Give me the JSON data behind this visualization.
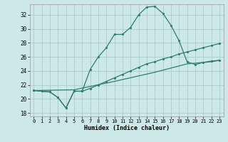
{
  "xlabel": "Humidex (Indice chaleur)",
  "bg_color": "#cce8e8",
  "grid_color": "#aacccc",
  "line_color": "#2e7d6e",
  "xlim": [
    -0.5,
    23.5
  ],
  "ylim": [
    17.5,
    33.5
  ],
  "yticks": [
    18,
    20,
    22,
    24,
    26,
    28,
    30,
    32
  ],
  "xticks": [
    0,
    1,
    2,
    3,
    4,
    5,
    6,
    7,
    8,
    9,
    10,
    11,
    12,
    13,
    14,
    15,
    16,
    17,
    18,
    19,
    20,
    21,
    22,
    23
  ],
  "line1_x": [
    0,
    1,
    2,
    3,
    4,
    5,
    6,
    7,
    8,
    9,
    10,
    11,
    12,
    13,
    14,
    15,
    16,
    17,
    18,
    19,
    20,
    21,
    22,
    23
  ],
  "line1_y": [
    21.2,
    21.1,
    21.0,
    20.2,
    18.7,
    21.1,
    21.1,
    24.2,
    26.0,
    27.3,
    29.2,
    29.2,
    30.2,
    32.0,
    33.1,
    33.2,
    32.2,
    30.5,
    28.3,
    25.3,
    24.9,
    25.2,
    25.4,
    25.5
  ],
  "line2_x": [
    0,
    1,
    2,
    3,
    4,
    5,
    6,
    7,
    8,
    9,
    10,
    11,
    12,
    13,
    14,
    15,
    16,
    17,
    18,
    19,
    20,
    21,
    22,
    23
  ],
  "line2_y": [
    21.2,
    21.1,
    21.0,
    20.2,
    18.7,
    21.1,
    21.1,
    21.5,
    22.0,
    22.5,
    23.0,
    23.5,
    24.0,
    24.5,
    25.0,
    25.3,
    25.7,
    26.0,
    26.4,
    26.7,
    27.0,
    27.3,
    27.6,
    27.9
  ],
  "line3_x": [
    0,
    5,
    10,
    15,
    19,
    20,
    21,
    22,
    23
  ],
  "line3_y": [
    21.2,
    21.3,
    22.5,
    23.8,
    25.0,
    25.1,
    25.2,
    25.3,
    25.5
  ]
}
